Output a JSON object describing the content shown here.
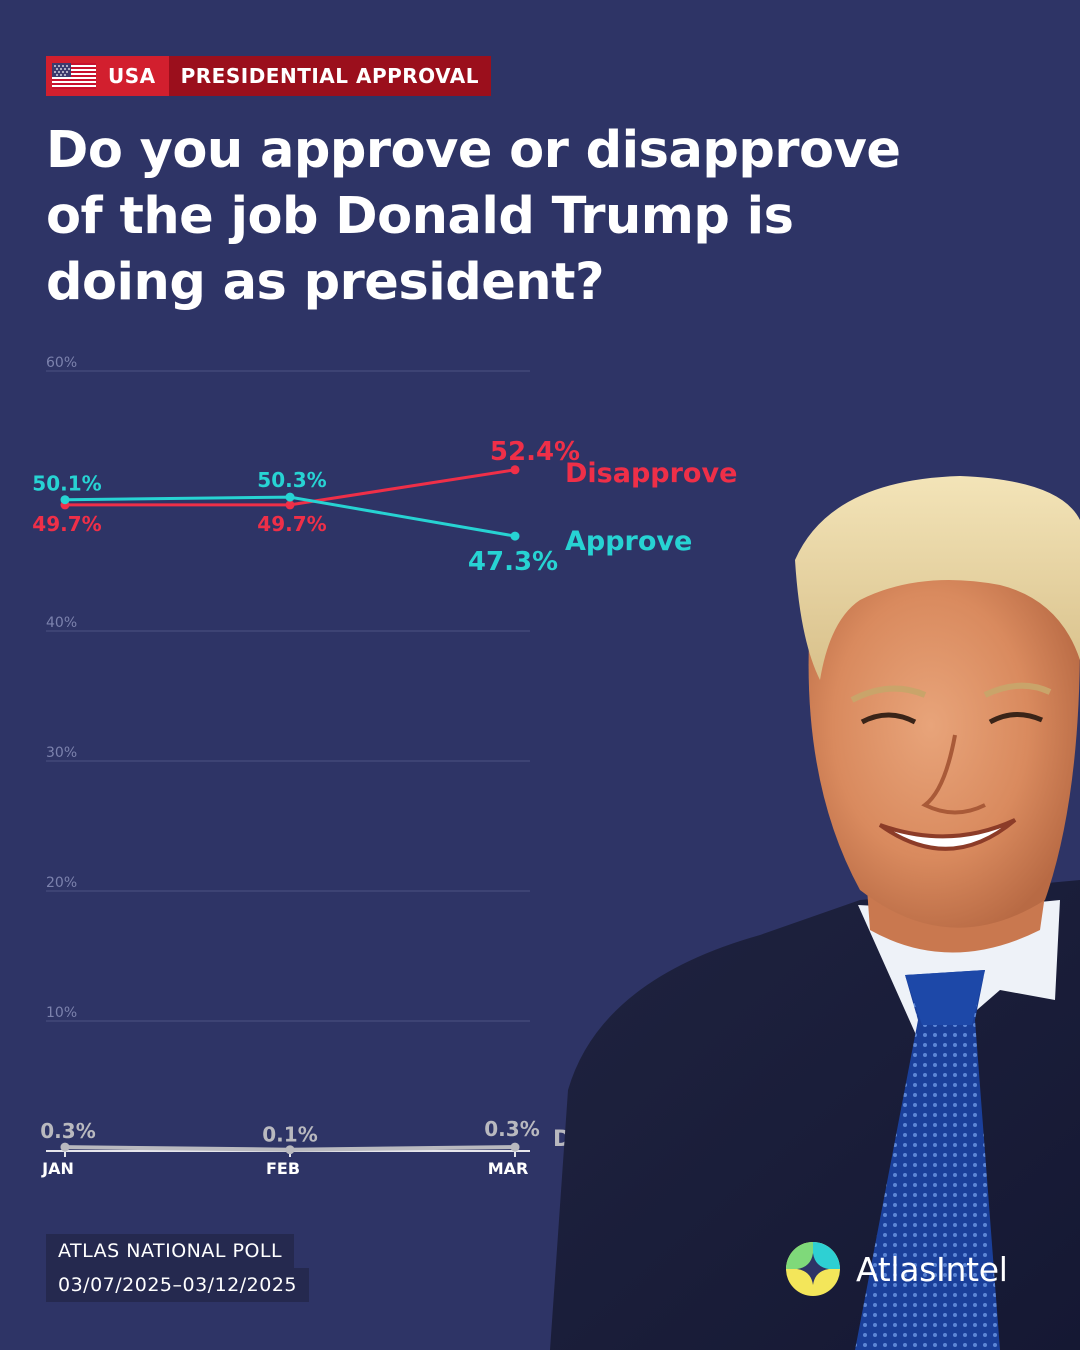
{
  "header": {
    "country": "USA",
    "topic": "PRESIDENTIAL APPROVAL"
  },
  "title": "Do you approve or disapprove of the job Donald Trump is doing as president?",
  "chart_data": {
    "type": "line",
    "categories": [
      "JAN",
      "FEB",
      "MAR"
    ],
    "ylim": [
      0,
      60
    ],
    "yticks": [
      10,
      20,
      30,
      40,
      60
    ],
    "ytick_labels": [
      "10%",
      "20%",
      "30%",
      "40%",
      "60%"
    ],
    "grid": true,
    "series": [
      {
        "name": "Disapprove",
        "values": [
          49.7,
          49.7,
          52.4
        ],
        "labels": [
          "49.7%",
          "49.7%",
          "52.4%"
        ],
        "color": "#ef2f48"
      },
      {
        "name": "Approve",
        "values": [
          50.1,
          50.3,
          47.3
        ],
        "labels": [
          "50.1%",
          "50.3%",
          "47.3%"
        ],
        "color": "#27d3d3"
      },
      {
        "name": "Don't know",
        "values": [
          0.3,
          0.1,
          0.3
        ],
        "labels": [
          "0.3%",
          "0.1%",
          "0.3%"
        ],
        "color": "#b9b9bf"
      }
    ]
  },
  "footer": {
    "poll_name": "ATLAS NATIONAL POLL",
    "poll_dates": "03/07/2025–03/12/2025"
  },
  "brand": {
    "name": "AtlasIntel"
  },
  "colors": {
    "background": "#2e3466",
    "tag_red": "#d21f2e",
    "tag_dark_red": "#9b0f1c"
  }
}
